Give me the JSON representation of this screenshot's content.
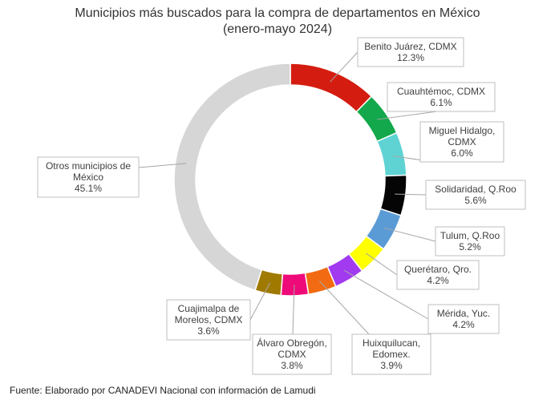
{
  "chart_data": {
    "type": "pie",
    "variant": "donut",
    "title_lines": [
      "Municipios más buscados para la compra de departamentos en México",
      "(enero-mayo 2024)"
    ],
    "source": "Fuente: Elaborado por CANADEVI Nacional con información de Lamudi",
    "legend": "none",
    "slices": [
      {
        "label_lines": [
          "Benito Juárez, CDMX"
        ],
        "value_label": "12.3%",
        "value": 12.3,
        "color": "#d41d10"
      },
      {
        "label_lines": [
          "Cuauhtémoc, CDMX"
        ],
        "value_label": "6.1%",
        "value": 6.1,
        "color": "#12a84b"
      },
      {
        "label_lines": [
          "Miguel Hidalgo,",
          "CDMX"
        ],
        "value_label": "6.0%",
        "value": 6.0,
        "color": "#5fd3d3"
      },
      {
        "label_lines": [
          "Solidaridad, Q.Roo"
        ],
        "value_label": "5.6%",
        "value": 5.6,
        "color": "#050505"
      },
      {
        "label_lines": [
          "Tulum, Q.Roo"
        ],
        "value_label": "5.2%",
        "value": 5.2,
        "color": "#5b9bd5"
      },
      {
        "label_lines": [
          "Querétaro, Qro."
        ],
        "value_label": "4.2%",
        "value": 4.2,
        "color": "#ffff00"
      },
      {
        "label_lines": [
          "Mérida, Yuc."
        ],
        "value_label": "4.2%",
        "value": 4.2,
        "color": "#a23af0"
      },
      {
        "label_lines": [
          "Huixquilucan,",
          "Edomex."
        ],
        "value_label": "3.9%",
        "value": 3.9,
        "color": "#f26a12"
      },
      {
        "label_lines": [
          "Álvaro Obregón,",
          "CDMX"
        ],
        "value_label": "3.8%",
        "value": 3.8,
        "color": "#ef0a7a"
      },
      {
        "label_lines": [
          "Cuajimalpa de",
          "Morelos, CDMX"
        ],
        "value_label": "3.6%",
        "value": 3.6,
        "color": "#a07a00"
      },
      {
        "label_lines": [
          "Otros municipios de",
          "México"
        ],
        "value_label": "45.1%",
        "value": 45.1,
        "color": "#d6d6d6"
      }
    ]
  }
}
